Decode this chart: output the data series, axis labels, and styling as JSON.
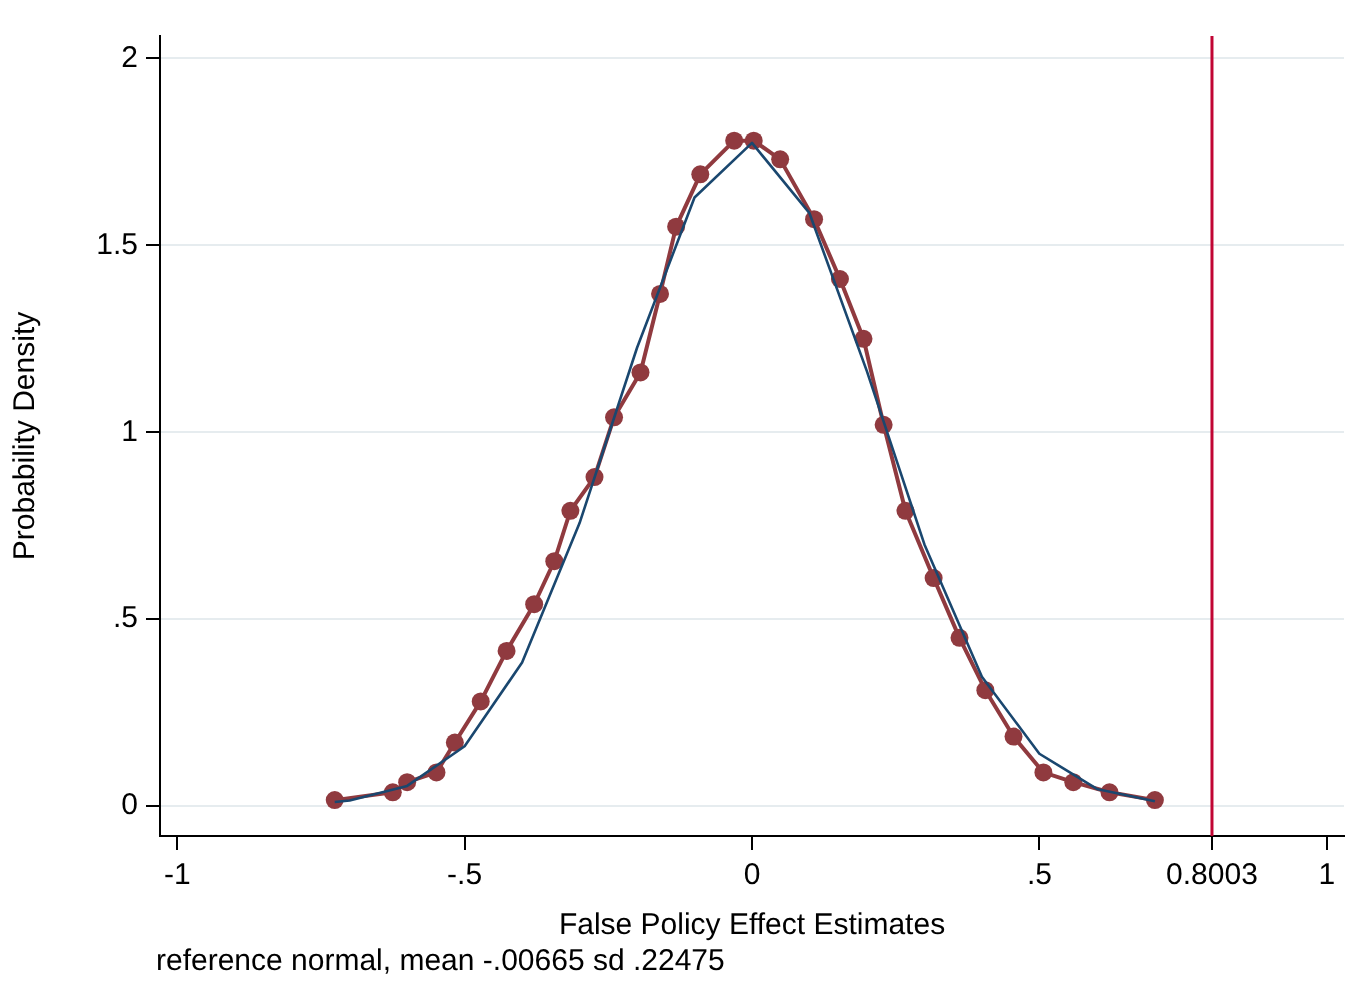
{
  "chart_data": {
    "type": "line",
    "xlabel": "False Policy Effect Estimates",
    "ylabel": "Probability Density",
    "annotations": [
      "reference normal, mean -.00665 sd .22475"
    ],
    "xlim": [
      -1.03,
      1.03
    ],
    "ylim": [
      -0.08,
      2.06
    ],
    "xticks": [
      -1,
      {
        "value": -0.5,
        "label": "-.5"
      },
      0,
      {
        "value": 0.5,
        "label": ".5"
      },
      0.8003,
      1
    ],
    "yticks": [
      0,
      {
        "value": 0.5,
        "label": ".5"
      },
      1,
      1.5,
      2
    ],
    "grid": "y",
    "legend": false,
    "ref_lines": [
      {
        "axis": "x",
        "value": 0.8003,
        "color": "#c10534"
      }
    ],
    "series": [
      {
        "color": "#1a476f",
        "marker": "none",
        "x": [
          -0.726,
          -0.7,
          -0.6,
          -0.5,
          -0.4,
          -0.3,
          -0.2,
          -0.1,
          0,
          0.1,
          0.2,
          0.3,
          0.4,
          0.5,
          0.6,
          0.701
        ],
        "values": [
          0.011,
          0.015,
          0.054,
          0.16,
          0.384,
          0.757,
          1.226,
          1.628,
          1.774,
          1.586,
          1.163,
          0.7,
          0.346,
          0.14,
          0.046,
          0.013
        ]
      },
      {
        "color": "#903a3f",
        "marker": "circle",
        "x": [
          -0.726,
          -0.625,
          -0.6,
          -0.549,
          -0.517,
          -0.472,
          -0.427,
          -0.379,
          -0.344,
          -0.316,
          -0.274,
          -0.24,
          -0.194,
          -0.16,
          -0.132,
          -0.09,
          -0.031,
          0.003,
          0.049,
          0.108,
          0.153,
          0.194,
          0.229,
          0.267,
          0.316,
          0.361,
          0.406,
          0.455,
          0.507,
          0.559,
          0.622,
          0.701
        ],
        "values": [
          0.016,
          0.037,
          0.064,
          0.09,
          0.17,
          0.28,
          0.415,
          0.54,
          0.655,
          0.79,
          0.88,
          1.04,
          1.16,
          1.37,
          1.55,
          1.69,
          1.78,
          1.78,
          1.73,
          1.57,
          1.41,
          1.25,
          1.02,
          0.79,
          0.61,
          0.45,
          0.31,
          0.186,
          0.09,
          0.064,
          0.037,
          0.016
        ]
      }
    ]
  }
}
